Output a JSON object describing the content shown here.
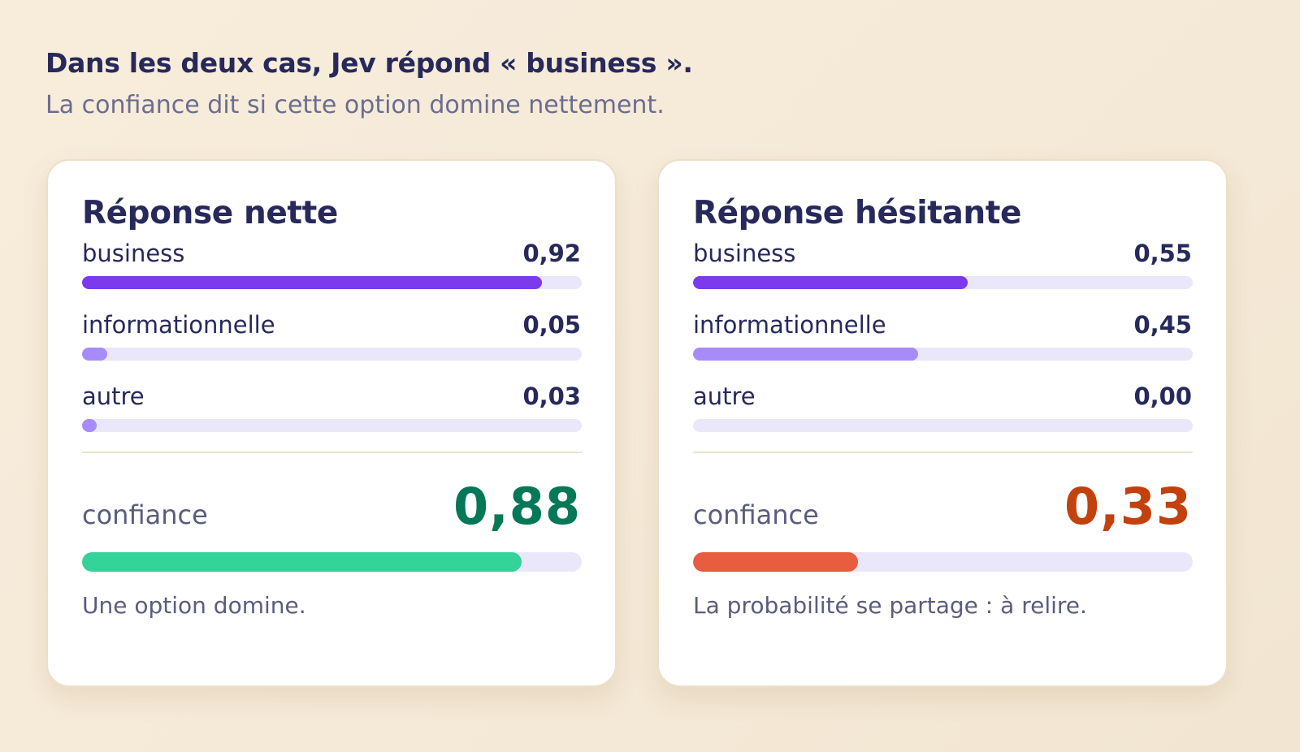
{
  "header": {
    "title": "Dans les deux cas, Jev répond « business ».",
    "subtitle": "La confiance dit si cette option domine nettement."
  },
  "cards": [
    {
      "title": "Réponse nette",
      "rows": [
        {
          "label": "business",
          "value": "0,92",
          "fraction": 0.92,
          "color": "#7c3aed"
        },
        {
          "label": "informationnelle",
          "value": "0,05",
          "fraction": 0.05,
          "color": "#a78bfa"
        },
        {
          "label": "autre",
          "value": "0,03",
          "fraction": 0.03,
          "color": "#a78bfa"
        }
      ],
      "confidence": {
        "label": "confiance",
        "value": "0,88",
        "fraction": 0.88,
        "value_color": "#047857",
        "bar_color": "#34d399"
      },
      "caption": "Une option domine."
    },
    {
      "title": "Réponse hésitante",
      "rows": [
        {
          "label": "business",
          "value": "0,55",
          "fraction": 0.55,
          "color": "#7c3aed"
        },
        {
          "label": "informationnelle",
          "value": "0,45",
          "fraction": 0.45,
          "color": "#a78bfa"
        },
        {
          "label": "autre",
          "value": "0,00",
          "fraction": 0.0,
          "color": "#a78bfa"
        }
      ],
      "confidence": {
        "label": "confiance",
        "value": "0,33",
        "fraction": 0.33,
        "value_color": "#c2410c",
        "bar_color": "#e85d3f"
      },
      "caption": "La probabilité se partage : à relire."
    }
  ]
}
